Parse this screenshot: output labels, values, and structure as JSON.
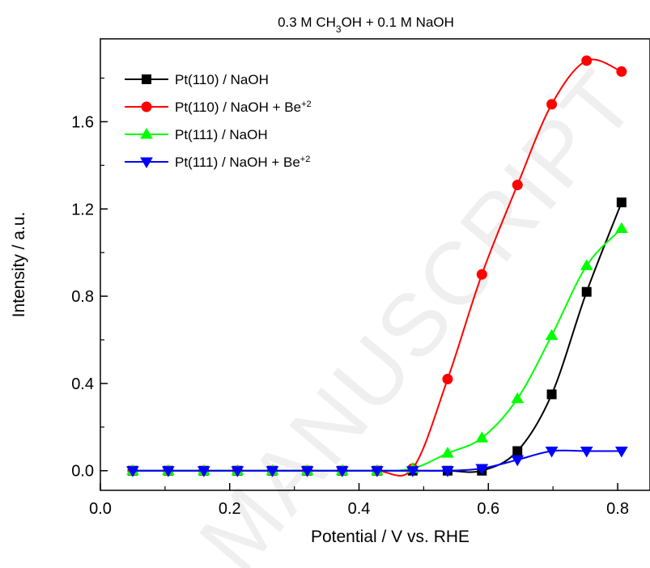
{
  "chart_data": {
    "type": "line",
    "title": "0.3 M CH3OH + 0.1 M NaOH",
    "title_parts": {
      "before": "0.3 M CH",
      "sub": "3",
      "after": "OH + 0.1 M NaOH"
    },
    "xlabel": "Potential / V vs. RHE",
    "ylabel": "Intensity / a.u.",
    "xlim": [
      0.0,
      0.85
    ],
    "ylim": [
      -0.09,
      1.98
    ],
    "x_ticks": [
      "0.0",
      "0.2",
      "0.4",
      "0.6",
      "0.8"
    ],
    "y_ticks": [
      "0.0",
      "0.4",
      "0.8",
      "1.2",
      "1.6"
    ],
    "grid": false,
    "legend_position": "top-left",
    "x": [
      0.05,
      0.105,
      0.16,
      0.212,
      0.266,
      0.32,
      0.374,
      0.428,
      0.483,
      0.537,
      0.59,
      0.645,
      0.698,
      0.752,
      0.806
    ],
    "series": [
      {
        "name": "Pt(110) / NaOH",
        "name_sup": "",
        "color": "#000000",
        "marker": "square",
        "values": [
          0,
          0,
          0,
          0,
          0,
          0,
          0,
          0,
          0,
          0,
          0,
          0.09,
          0.35,
          0.82,
          1.23
        ]
      },
      {
        "name": "Pt(110) / NaOH + Be",
        "name_sup": "+2",
        "color": "#ff0000",
        "marker": "circle",
        "values": [
          0,
          0,
          0,
          0,
          0,
          0,
          0,
          0,
          0.01,
          0.42,
          0.9,
          1.31,
          1.68,
          1.88,
          1.83
        ]
      },
      {
        "name": "Pt(111) / NaOH",
        "name_sup": "",
        "color": "#00ff00",
        "marker": "triangle-up",
        "values": [
          0,
          0,
          0,
          0,
          0,
          0,
          0,
          0,
          0.01,
          0.08,
          0.15,
          0.33,
          0.62,
          0.94,
          1.11
        ]
      },
      {
        "name": "Pt(111) / NaOH + Be",
        "name_sup": "+2",
        "color": "#0000ff",
        "marker": "triangle-down",
        "values": [
          0,
          0,
          0,
          0,
          0,
          0,
          0,
          0,
          0,
          0,
          0.01,
          0.05,
          0.09,
          0.09,
          0.09
        ]
      }
    ]
  },
  "watermark": {
    "text": "MANUSCRIPT"
  }
}
